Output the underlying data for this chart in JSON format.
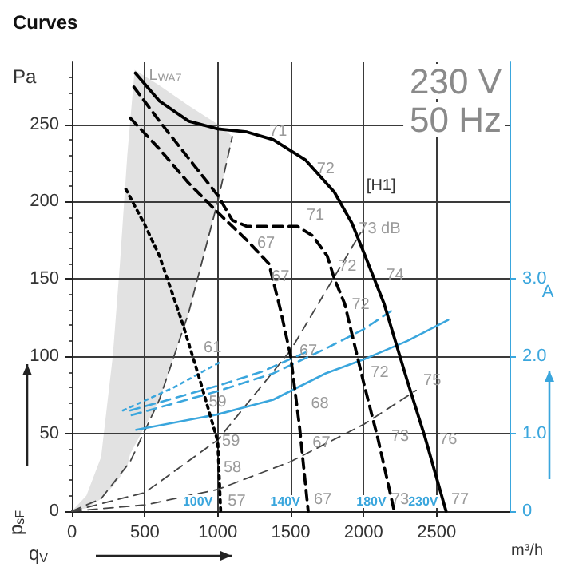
{
  "chart_data": {
    "type": "line",
    "title": "Curves",
    "xlabel": "q$_{V}$",
    "ylabel": "p$_{sF}$",
    "y2label": "A",
    "xlim": [
      0,
      3000
    ],
    "xticks": [
      0,
      500,
      1000,
      1500,
      2000,
      2500
    ],
    "ylim": [
      0,
      290
    ],
    "yticks": [
      0,
      50,
      100,
      150,
      200,
      250
    ],
    "y2lim": [
      0,
      5.8
    ],
    "y2ticks": [
      0,
      {
        "value": 1,
        "label": "1.0"
      },
      {
        "value": 2,
        "label": "2.0"
      },
      {
        "value": 3,
        "label": "3.0"
      }
    ],
    "grid": true,
    "legend": false,
    "marker": "none",
    "series": [
      {
        "name": "230V",
        "color": "#000000",
        "line_style": "solid",
        "x": [
          435,
          600,
          800,
          1000,
          1200,
          1380,
          1600,
          1800,
          1920,
          2010,
          2140,
          2300,
          2420,
          2565
        ],
        "values": [
          283,
          265,
          252,
          247,
          245,
          240,
          227,
          206,
          186,
          165,
          134,
          84,
          48,
          0
        ]
      },
      {
        "name": "180V",
        "color": "#000000",
        "line_style": "dashed",
        "x": [
          425,
          600,
          800,
          1000,
          1100,
          1200,
          1400,
          1545,
          1650,
          1750,
          1800,
          1870,
          2000,
          2100,
          2210
        ],
        "values": [
          274,
          252,
          228,
          204,
          188,
          184,
          184,
          184,
          178,
          165,
          150,
          134,
          83,
          46,
          0
        ]
      },
      {
        "name": "140V",
        "color": "#000000",
        "line_style": "dashed",
        "x": [
          400,
          600,
          800,
          1000,
          1200,
          1350,
          1430,
          1500,
          1560,
          1620
        ],
        "values": [
          254,
          234,
          212,
          193,
          175,
          160,
          130,
          100,
          55,
          0
        ]
      },
      {
        "name": "100V",
        "color": "#000000",
        "line_style": "dotted",
        "x": [
          370,
          500,
          600,
          760,
          880,
          1000,
          1020
        ],
        "values": [
          208,
          185,
          165,
          121,
          84,
          45,
          0
        ]
      },
      {
        "color": "#444444",
        "line_style": "dashed",
        "x": [
          0,
          200,
          400,
          600,
          800,
          1000,
          1100
        ],
        "values": [
          0,
          8,
          32,
          72,
          128,
          200,
          242
        ]
      },
      {
        "color": "#444444",
        "line_style": "dashed",
        "x": [
          0,
          500,
          1000,
          1500,
          1980
        ],
        "values": [
          0,
          12,
          46,
          104,
          180
        ]
      },
      {
        "color": "#444444",
        "line_style": "dashed",
        "x": [
          0,
          500,
          1000,
          1500,
          2000,
          2360
        ],
        "values": [
          0,
          4,
          14,
          32,
          56,
          78
        ]
      },
      {
        "axis": "y2",
        "color": "#3aa6dd",
        "line_style": "solid",
        "x": [
          440,
          1000,
          1380,
          1740,
          2000,
          2300,
          2580
        ],
        "values": [
          1.05,
          1.25,
          1.44,
          1.78,
          1.96,
          2.2,
          2.47
        ]
      },
      {
        "axis": "y2",
        "color": "#3aa6dd",
        "line_style": "dashed",
        "x": [
          410,
          1000,
          1380,
          1740,
          2000,
          2200
        ],
        "values": [
          1.24,
          1.55,
          1.78,
          2.1,
          2.35,
          2.6
        ]
      },
      {
        "axis": "y2",
        "color": "#3aa6dd",
        "line_style": "dashed",
        "x": [
          400,
          1000,
          1300,
          1600
        ],
        "values": [
          1.3,
          1.62,
          1.8,
          2.05
        ]
      },
      {
        "axis": "y2",
        "color": "#3aa6dd",
        "line_style": "dotted",
        "x": [
          350,
          700,
          1030
        ],
        "values": [
          1.3,
          1.6,
          1.94
        ]
      }
    ],
    "annotations": [
      "Pa",
      "m³/h",
      "230 V",
      "50 Hz",
      "L$_{WA7}$",
      "[H1]",
      "71",
      "72",
      "71",
      "73 dB",
      "67",
      "67",
      "72",
      "74",
      "72",
      "61",
      "59",
      "59",
      "58",
      "57",
      "67",
      "68",
      "67",
      "67",
      "72",
      "73",
      "75",
      "76",
      "73",
      "77"
    ]
  }
}
